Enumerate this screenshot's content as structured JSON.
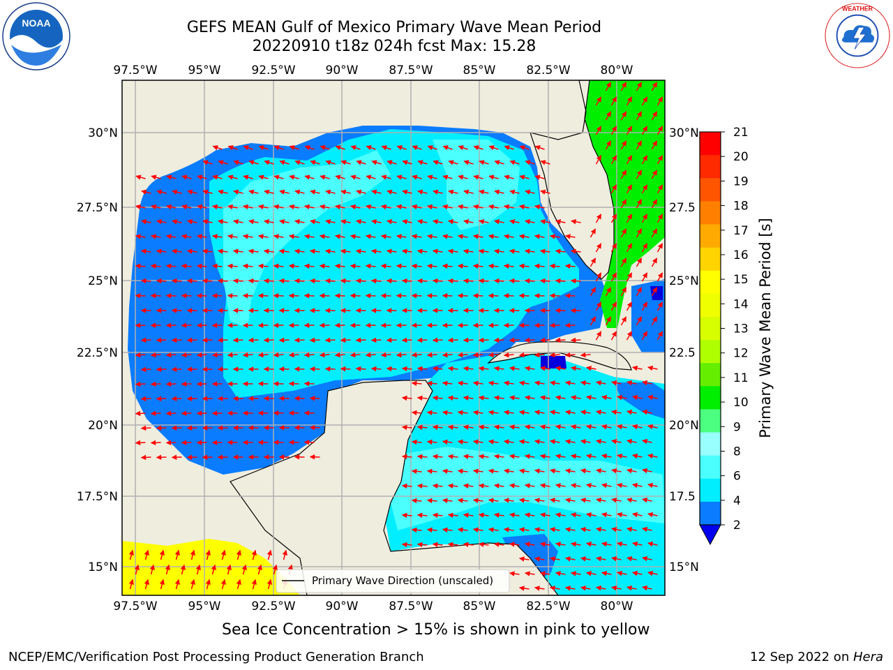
{
  "header": {
    "title_line1": "GEFS MEAN Gulf of Mexico Primary Wave Mean Period",
    "title_line2": "20220910 t18z 024h fcst   Max: 15.28"
  },
  "logos": {
    "left": "noaa-logo",
    "left_text": "NOAA",
    "right": "national-weather-service-logo",
    "right_text": "NATIONAL WEATHER SERVICE"
  },
  "map": {
    "lon_labels": [
      "97.5°W",
      "95°W",
      "92.5°W",
      "90°W",
      "87.5°W",
      "85°W",
      "82.5°W",
      "80°W"
    ],
    "lat_labels": [
      "30°N",
      "27.5°N",
      "25°N",
      "22.5°N",
      "20°N",
      "17.5°N",
      "15°N"
    ],
    "lat_labels_right": [
      "30°N",
      "27.5",
      "25°N",
      "22.5",
      "20°N",
      "17.5",
      "15°N"
    ],
    "legend_label": "Primary Wave Direction (unscaled)",
    "colors": {
      "land": "#efedde",
      "ocean_light": "#4cffff",
      "ocean_cyan": "#00eeff",
      "ocean_blue": "#0a7cff",
      "ocean_deep": "#0000dd",
      "green": "#00ee00",
      "yellow": "#ffff00",
      "arrow": "#ff0000",
      "grid": "#b0b0b0"
    }
  },
  "colorbar": {
    "label": "Primary Wave Mean Period [s]",
    "ticks": [
      "21",
      "20",
      "19",
      "18",
      "17",
      "16",
      "15",
      "14",
      "13",
      "12",
      "11",
      "10",
      "9",
      "8",
      "6",
      "4",
      "2"
    ],
    "colors": [
      "#ff0000",
      "#ff2a00",
      "#ff5500",
      "#ff8000",
      "#ffaa00",
      "#ffd400",
      "#ffff00",
      "#f0ff00",
      "#d8ff00",
      "#b0ff00",
      "#66ee00",
      "#00ee00",
      "#4cff80",
      "#99ffff",
      "#4cffff",
      "#00eeff",
      "#0a7cff"
    ],
    "extend_color": "#0000ee"
  },
  "footer": {
    "ice_note": "Sea Ice Concentration > 15% is shown in pink to yellow",
    "credit": "NCEP/EMC/Verification Post Processing Product Generation Branch",
    "date_prefix": "12 Sep 2022 on ",
    "date_host": "Hera"
  }
}
